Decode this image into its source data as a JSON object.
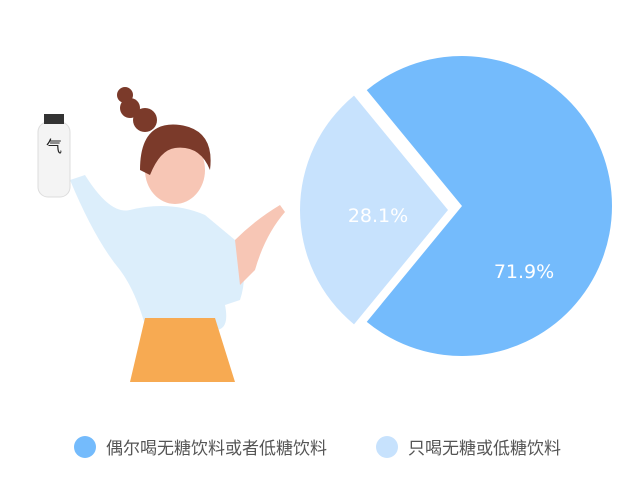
{
  "chart_data": {
    "type": "pie",
    "slices": [
      {
        "name": "偶尔喝无糖饮料或者低糖饮料",
        "value": 71.9,
        "label": "71.9%",
        "color": "#74bbfc"
      },
      {
        "name": "只喝无糖或低糖饮料",
        "value": 28.1,
        "label": "28.1%",
        "color": "#c7e2fd"
      }
    ],
    "legend_position": "bottom"
  },
  "illustration": {
    "bottle_text": "气"
  }
}
